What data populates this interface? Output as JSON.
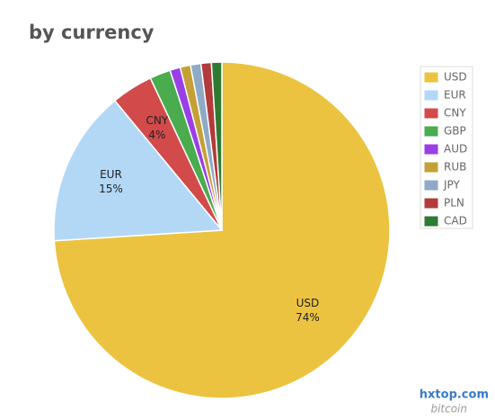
{
  "chart_data": {
    "type": "pie",
    "title": "by currency",
    "categories": [
      "USD",
      "EUR",
      "CNY",
      "GBP",
      "AUD",
      "RUB",
      "JPY",
      "PLN",
      "CAD"
    ],
    "values": [
      74,
      15,
      4,
      2,
      1,
      1,
      1,
      1,
      1
    ],
    "value_labels": [
      "74%",
      "15%",
      "4%",
      null,
      null,
      null,
      null,
      null,
      null
    ],
    "colors": [
      "#ebc340",
      "#b3d8f6",
      "#d24a4a",
      "#4aab4f",
      "#9a3fe6",
      "#c4a036",
      "#8eaac6",
      "#b23b3b",
      "#2f7a33"
    ],
    "legend": "right",
    "watermark": [
      "hxtop.com",
      "bitcoin"
    ]
  }
}
